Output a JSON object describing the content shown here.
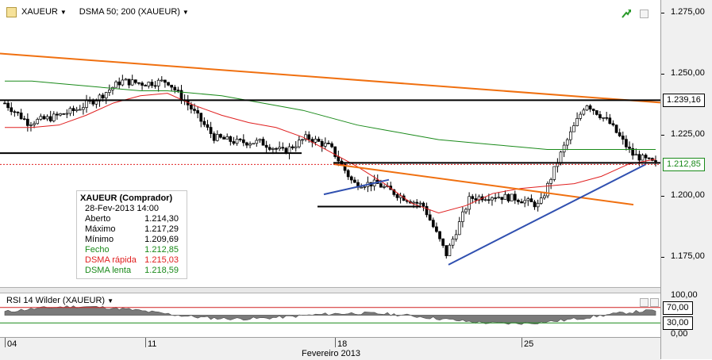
{
  "header": {
    "symbol": "XAUEUR",
    "indicator": "DSMA 50; 200 (XAUEUR)"
  },
  "rsi_header": "RSI 14 Wilder (XAUEUR)",
  "legend": {
    "title": "XAUEUR (Comprador)",
    "datetime": "28-Fev-2013 14:00",
    "rows": [
      {
        "label": "Aberto",
        "value": "1.214,30",
        "color": "#000000"
      },
      {
        "label": "Máximo",
        "value": "1.217,29",
        "color": "#000000"
      },
      {
        "label": "Mínimo",
        "value": "1.209,69",
        "color": "#000000"
      },
      {
        "label": "Fecho",
        "value": "1.212,85",
        "color": "#1a8a1a"
      },
      {
        "label": "DSMA rápida",
        "value": "1.215,03",
        "color": "#e02020"
      },
      {
        "label": "DSMA lenta",
        "value": "1.218,59",
        "color": "#1a8a1a"
      }
    ]
  },
  "price_axis": {
    "ticks": [
      "1.275,00",
      "1.250,00",
      "1.225,00",
      "1.200,00",
      "1.175,00"
    ],
    "tags": [
      {
        "value": "1.239,16",
        "color": "#000000"
      },
      {
        "value": "1.212,85",
        "color": "#1a8a1a"
      }
    ]
  },
  "rsi_axis": {
    "ticks": [
      "100,00",
      "0,00"
    ],
    "tags": [
      {
        "value": "70,00",
        "color": "#000000"
      },
      {
        "value": "30,00",
        "color": "#000000"
      }
    ]
  },
  "x_axis": {
    "ticks": [
      "04",
      "11",
      "18",
      "25"
    ],
    "label": "Fevereiro 2013"
  },
  "colors": {
    "fast": "#e02020",
    "slow": "#1a8a1a",
    "trend_orange": "#f07010",
    "trend_blue": "#3050b0",
    "level": "#000000",
    "rsi_fill": "#7a7a7a"
  },
  "chart_data": {
    "type": "line",
    "title": "XAUEUR",
    "ylim": [
      1165,
      1280
    ],
    "x_ticks": [
      "04",
      "11",
      "18",
      "25"
    ],
    "xlabel": "Fevereiro 2013",
    "series": [
      {
        "name": "DSMA rápida",
        "values": [
          1228,
          1228,
          1229,
          1233,
          1238,
          1241,
          1242,
          1237,
          1233,
          1230,
          1228,
          1224,
          1218,
          1212,
          1205,
          1197,
          1193,
          1196,
          1201,
          1203,
          1204,
          1205,
          1208,
          1213,
          1215
        ]
      },
      {
        "name": "DSMA lenta",
        "values": [
          1247,
          1247,
          1246,
          1245,
          1244,
          1243,
          1243,
          1242,
          1241,
          1239,
          1237,
          1235,
          1232,
          1229,
          1227,
          1225,
          1223,
          1222,
          1221,
          1220,
          1219,
          1219,
          1219,
          1219,
          1219
        ]
      }
    ],
    "close": [
      1238,
      1230,
      1232,
      1235,
      1240,
      1247,
      1246,
      1247,
      1236,
      1224,
      1222,
      1222,
      1218,
      1224,
      1220,
      1205,
      1205,
      1200,
      1196,
      1176,
      1199,
      1200,
      1199,
      1196,
      1219,
      1238,
      1230,
      1217,
      1213
    ],
    "levels": [
      1239.16,
      1212.85
    ],
    "rsi": {
      "ylim": [
        0,
        100
      ],
      "levels": [
        70,
        30
      ]
    }
  }
}
